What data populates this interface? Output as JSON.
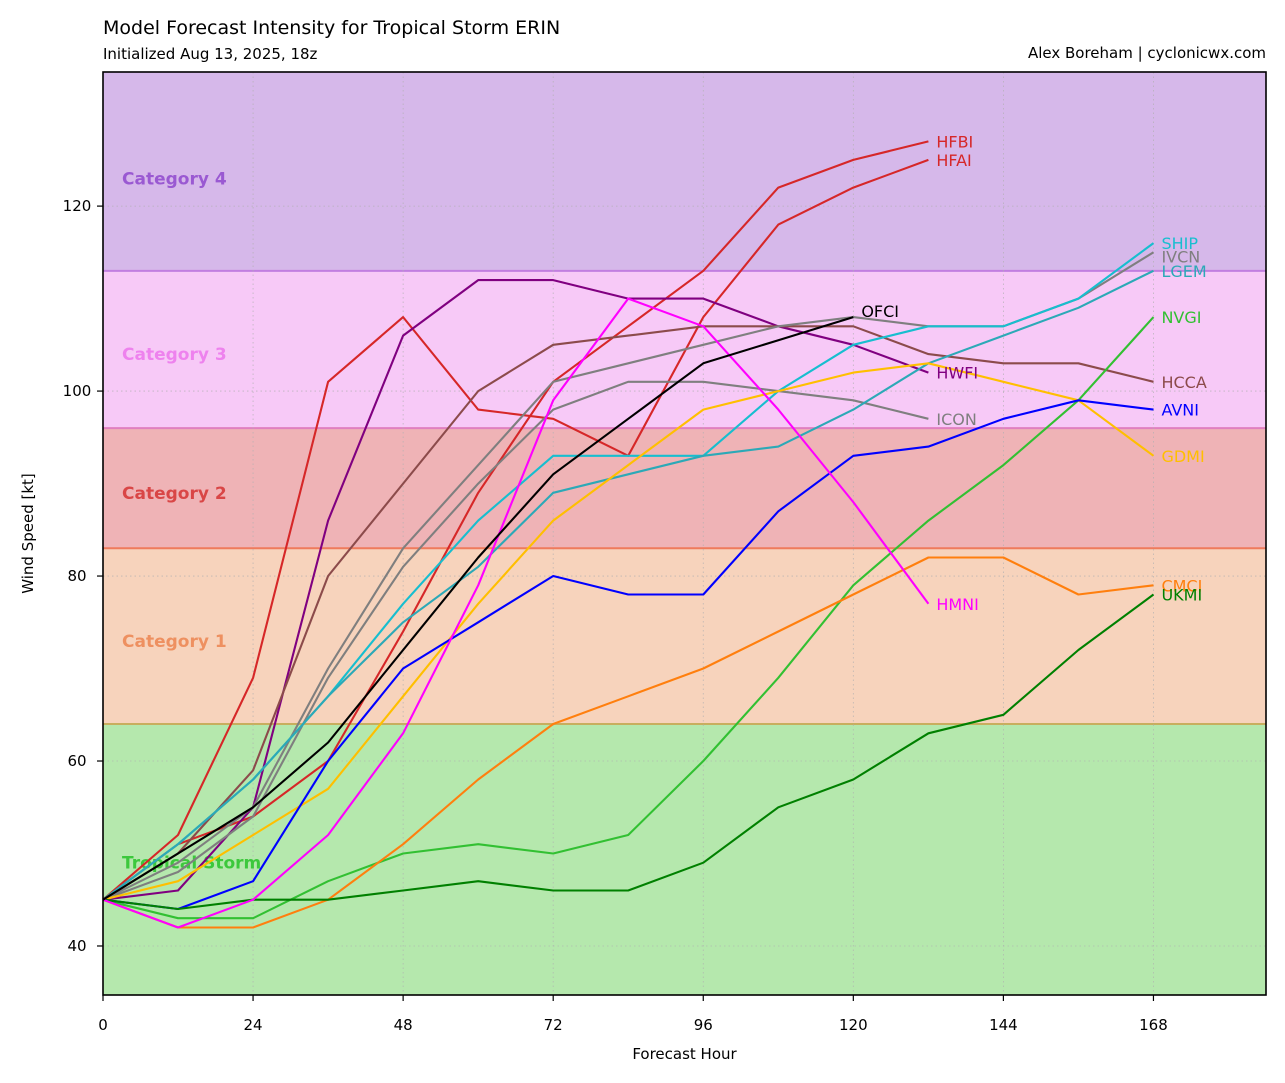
{
  "header": {
    "title": "Model Forecast Intensity for Tropical Storm ERIN",
    "subtitle": "Initialized Aug 13, 2025, 18z",
    "credit": "Alex Boreham | cyclonicwx.com"
  },
  "chart_data": {
    "type": "line",
    "xlabel": "Forecast Hour",
    "ylabel": "Wind Speed [kt]",
    "xlim": [
      0,
      186
    ],
    "ylim": [
      34.7,
      134.5
    ],
    "xticks": [
      0,
      24,
      48,
      72,
      96,
      120,
      144,
      168
    ],
    "yticks": [
      40,
      60,
      80,
      100,
      120
    ],
    "grid": true,
    "bands": [
      {
        "label": "Tropical Storm",
        "from": 34,
        "to": 64,
        "fill": "#b5e8ad",
        "edge": "#c8ae5e",
        "text_color": "#3cc83c"
      },
      {
        "label": "Category 1",
        "from": 64,
        "to": 83,
        "fill": "#f7d3bc",
        "edge": "#ef7b5c",
        "text_color": "#ee9060"
      },
      {
        "label": "Category 2",
        "from": 83,
        "to": 96,
        "fill": "#efb3b6",
        "edge": "#e07fbf",
        "text_color": "#d94646"
      },
      {
        "label": "Category 3",
        "from": 96,
        "to": 113,
        "fill": "#f7c9f7",
        "edge": "#c17ee0",
        "text_color": "#ee82ee"
      },
      {
        "label": "Category 4",
        "from": 113,
        "to": 137,
        "fill": "#d6b8ea",
        "edge": "#c17ee0",
        "text_color": "#9a59d2"
      }
    ],
    "series": [
      {
        "name": "HFBI",
        "color": "#d62728",
        "x": [
          0,
          12,
          24,
          36,
          48,
          60,
          72,
          84,
          96,
          108,
          120,
          132
        ],
        "y": [
          45,
          51,
          54,
          60,
          74,
          89,
          101,
          107,
          113,
          122,
          125,
          127
        ]
      },
      {
        "name": "HFAI",
        "color": "#d62728",
        "x": [
          0,
          12,
          24,
          36,
          48,
          60,
          72,
          84,
          96,
          108,
          120,
          132
        ],
        "y": [
          45,
          52,
          69,
          101,
          108,
          98,
          97,
          93,
          108,
          118,
          122,
          125
        ]
      },
      {
        "name": "HWFI",
        "color": "#800080",
        "x": [
          0,
          12,
          24,
          36,
          48,
          60,
          72,
          84,
          96,
          108,
          120,
          132
        ],
        "y": [
          45,
          46,
          55,
          86,
          106,
          112,
          112,
          110,
          110,
          107,
          105,
          102
        ]
      },
      {
        "name": "HCCA",
        "color": "#8c4b4b",
        "x": [
          0,
          12,
          24,
          36,
          48,
          60,
          72,
          84,
          96,
          108,
          120,
          132,
          144,
          156,
          168
        ],
        "y": [
          45,
          50,
          59,
          80,
          90,
          100,
          105,
          106,
          107,
          107,
          107,
          104,
          103,
          103,
          101
        ]
      },
      {
        "name": "IVCN",
        "color": "#7f7f7f",
        "x": [
          0,
          12,
          24,
          36,
          48,
          60,
          72,
          84,
          96,
          108,
          120,
          132,
          144,
          156,
          168
        ],
        "y": [
          45,
          49,
          55,
          70,
          83,
          92,
          101,
          103,
          105,
          107,
          108,
          107,
          107,
          110,
          115
        ]
      },
      {
        "name": "ICON",
        "color": "#7f7f7f",
        "x": [
          0,
          12,
          24,
          36,
          48,
          60,
          72,
          84,
          96,
          108,
          120,
          132
        ],
        "y": [
          45,
          48,
          54,
          69,
          81,
          90,
          98,
          101,
          101,
          100,
          99,
          97
        ]
      },
      {
        "name": "SHIP",
        "color": "#17becf",
        "x": [
          0,
          12,
          24,
          36,
          48,
          60,
          72,
          84,
          96,
          108,
          120,
          132,
          144,
          156,
          168
        ],
        "y": [
          45,
          51,
          58,
          67,
          77,
          86,
          93,
          93,
          93,
          100,
          105,
          107,
          107,
          110,
          116
        ]
      },
      {
        "name": "LGEM",
        "color": "#2ca9b7",
        "x": [
          0,
          12,
          24,
          36,
          48,
          60,
          72,
          84,
          96,
          108,
          120,
          132,
          144,
          156,
          168
        ],
        "y": [
          45,
          51,
          58,
          67,
          75,
          81,
          89,
          91,
          93,
          94,
          98,
          103,
          106,
          109,
          113
        ]
      },
      {
        "name": "NVGI",
        "color": "#32c032",
        "x": [
          0,
          12,
          24,
          36,
          48,
          60,
          72,
          84,
          96,
          108,
          120,
          132,
          144,
          156,
          168
        ],
        "y": [
          45,
          43,
          43,
          47,
          50,
          51,
          50,
          52,
          60,
          69,
          79,
          86,
          92,
          99,
          108
        ]
      },
      {
        "name": "GDMI",
        "color": "#ffbf00",
        "x": [
          0,
          12,
          24,
          36,
          48,
          60,
          72,
          84,
          96,
          108,
          120,
          132,
          144,
          156,
          168
        ],
        "y": [
          45,
          47,
          52,
          57,
          67,
          77,
          86,
          92,
          98,
          100,
          102,
          103,
          101,
          99,
          93
        ]
      },
      {
        "name": "AVNI",
        "color": "#0000ff",
        "x": [
          0,
          12,
          24,
          36,
          48,
          60,
          72,
          84,
          96,
          108,
          120,
          132,
          144,
          156,
          168
        ],
        "y": [
          45,
          44,
          47,
          60,
          70,
          75,
          80,
          78,
          78,
          87,
          93,
          94,
          97,
          99,
          98
        ]
      },
      {
        "name": "CMCI",
        "color": "#ff7f0e",
        "x": [
          0,
          12,
          24,
          36,
          48,
          60,
          72,
          84,
          96,
          108,
          120,
          132,
          144,
          156,
          168
        ],
        "y": [
          45,
          42,
          42,
          45,
          51,
          58,
          64,
          67,
          70,
          74,
          78,
          82,
          82,
          78,
          79
        ]
      },
      {
        "name": "UKMI",
        "color": "#008000",
        "x": [
          0,
          12,
          24,
          36,
          48,
          60,
          72,
          84,
          96,
          108,
          120,
          132,
          144,
          156,
          168
        ],
        "y": [
          45,
          44,
          45,
          45,
          46,
          47,
          46,
          46,
          49,
          55,
          58,
          63,
          65,
          72,
          78
        ]
      },
      {
        "name": "HMNI",
        "color": "#ff00ff",
        "x": [
          0,
          12,
          24,
          36,
          48,
          60,
          72,
          84,
          96,
          108,
          120,
          132
        ],
        "y": [
          45,
          42,
          45,
          52,
          63,
          79,
          99,
          110,
          107,
          98,
          88,
          77
        ]
      },
      {
        "name": "OFCI",
        "color": "#000000",
        "x": [
          0,
          12,
          24,
          36,
          48,
          60,
          72,
          84,
          96,
          108,
          120
        ],
        "y": [
          45,
          50,
          55,
          62,
          72,
          82,
          91,
          97,
          103,
          105.5,
          108
        ]
      }
    ]
  }
}
